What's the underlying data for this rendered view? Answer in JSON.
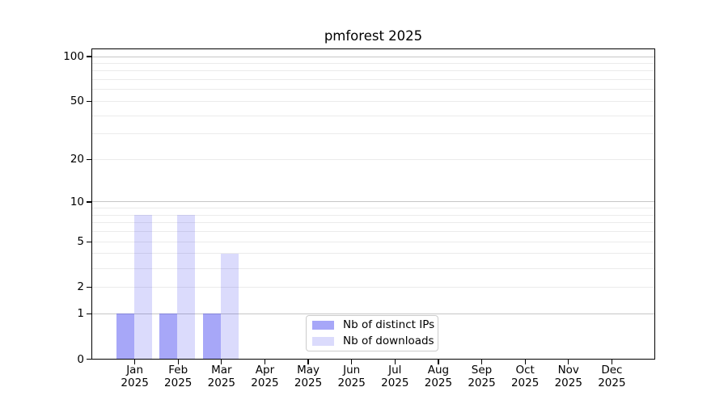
{
  "chart_data": {
    "type": "bar",
    "title": "pmforest 2025",
    "x_categories": [
      "Jan",
      "Feb",
      "Mar",
      "Apr",
      "May",
      "Jun",
      "Jul",
      "Aug",
      "Sep",
      "Oct",
      "Nov",
      "Dec"
    ],
    "x_sub_label": "2025",
    "series": [
      {
        "name": "Nb of distinct IPs",
        "color": "#2222ee",
        "fill": "rgba(34,34,238,0.40)",
        "values": [
          1,
          1,
          1,
          0,
          0,
          0,
          0,
          0,
          0,
          0,
          0,
          0
        ]
      },
      {
        "name": "Nb of downloads",
        "color": "#2222ee",
        "fill": "rgba(34,34,238,0.16)",
        "values": [
          8,
          8,
          4,
          0,
          0,
          0,
          0,
          0,
          0,
          0,
          0,
          0
        ]
      }
    ],
    "y_axis": {
      "scale": "log10(1+y)",
      "tick_values": [
        0,
        1,
        2,
        5,
        10,
        20,
        50,
        100
      ],
      "major_grid_values": [
        1,
        10,
        100
      ],
      "minor_grid_values": [
        2,
        3,
        4,
        5,
        6,
        7,
        8,
        9,
        20,
        30,
        40,
        50,
        60,
        70,
        80,
        90
      ],
      "y_min": 0,
      "y_max": 114
    },
    "legend": {
      "position": "bottom-center",
      "entries": [
        "Nb of distinct IPs",
        "Nb of downloads"
      ]
    },
    "colors": {
      "background": "#ffffff",
      "axis": "#000000",
      "text": "#000000",
      "major_grid": "#c6c6c6",
      "minor_grid": "#ebebeb",
      "legend_border": "#cccccc"
    }
  }
}
